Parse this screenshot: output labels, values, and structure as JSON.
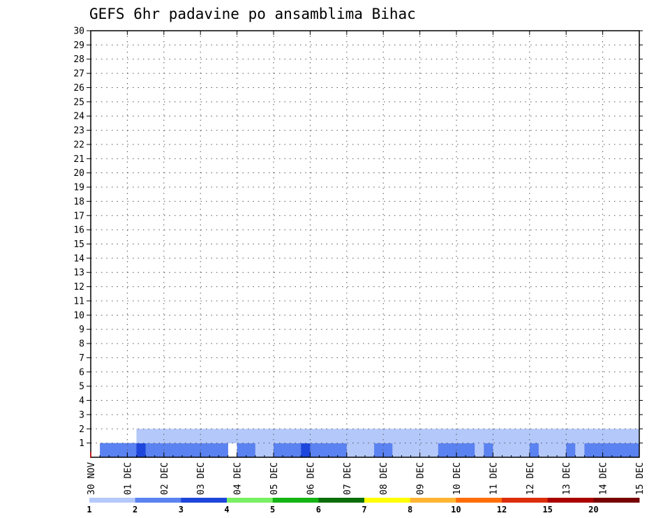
{
  "chart_data": {
    "type": "heatmap",
    "title": "GEFS 6hr padavine po ansamblima Bihac",
    "xlabel": "",
    "ylabel": "",
    "x_ticks": [
      "30 NOV",
      "01 DEC",
      "02 DEC",
      "03 DEC",
      "04 DEC",
      "05 DEC",
      "06 DEC",
      "07 DEC",
      "08 DEC",
      "09 DEC",
      "10 DEC",
      "11 DEC",
      "12 DEC",
      "13 DEC",
      "14 DEC",
      "15 DEC"
    ],
    "y_ticks": [
      1,
      2,
      3,
      4,
      5,
      6,
      7,
      8,
      9,
      10,
      11,
      12,
      13,
      14,
      15,
      16,
      17,
      18,
      19,
      20,
      21,
      22,
      23,
      24,
      25,
      26,
      27,
      28,
      29,
      30
    ],
    "x_range_days": [
      0,
      15
    ],
    "time_step_hours": 6,
    "y_range": [
      0,
      30
    ],
    "grid": true,
    "legend_placement": "bottom",
    "legend_bins": [
      1,
      2,
      3,
      4,
      5,
      6,
      7,
      8,
      10,
      12,
      15,
      20
    ],
    "legend_colors": [
      "#b4c8fa",
      "#5a82f0",
      "#1e46dc",
      "#78f064",
      "#14b414",
      "#0a6e0a",
      "#ffff00",
      "#ffb432",
      "#ff6e0a",
      "#dc2d0a",
      "#aa0000",
      "#780000"
    ],
    "cells": [
      [
        0.25,
        0,
        2
      ],
      [
        0.5,
        0,
        2
      ],
      [
        0.75,
        0,
        2
      ],
      [
        1,
        0,
        2
      ],
      [
        1.25,
        0,
        3
      ],
      [
        1.5,
        0,
        2
      ],
      [
        1.75,
        0,
        2
      ],
      [
        2,
        0,
        2
      ],
      [
        2.25,
        0,
        2
      ],
      [
        2.5,
        0,
        2
      ],
      [
        2.75,
        0,
        2
      ],
      [
        3,
        0,
        2
      ],
      [
        3.25,
        0,
        2
      ],
      [
        3.5,
        0,
        2
      ],
      [
        4,
        0,
        2
      ],
      [
        4.25,
        0,
        2
      ],
      [
        4.5,
        0,
        1
      ],
      [
        4.75,
        0,
        1
      ],
      [
        5,
        0,
        2
      ],
      [
        5.25,
        0,
        2
      ],
      [
        5.5,
        0,
        2
      ],
      [
        5.75,
        0,
        3
      ],
      [
        6,
        0,
        2
      ],
      [
        6.25,
        0,
        2
      ],
      [
        6.5,
        0,
        2
      ],
      [
        6.75,
        0,
        2
      ],
      [
        7,
        0,
        1
      ],
      [
        7.25,
        0,
        1
      ],
      [
        7.5,
        0,
        1
      ],
      [
        7.75,
        0,
        2
      ],
      [
        8,
        0,
        2
      ],
      [
        8.25,
        0,
        1
      ],
      [
        8.5,
        0,
        1
      ],
      [
        8.75,
        0,
        1
      ],
      [
        9,
        0,
        1
      ],
      [
        9.25,
        0,
        1
      ],
      [
        9.5,
        0,
        2
      ],
      [
        9.75,
        0,
        2
      ],
      [
        10,
        0,
        2
      ],
      [
        10.25,
        0,
        2
      ],
      [
        10.5,
        0,
        1
      ],
      [
        10.75,
        0,
        2
      ],
      [
        11,
        0,
        1
      ],
      [
        11.25,
        0,
        1
      ],
      [
        11.5,
        0,
        1
      ],
      [
        11.75,
        0,
        1
      ],
      [
        12,
        0,
        2
      ],
      [
        12.25,
        0,
        1
      ],
      [
        12.5,
        0,
        1
      ],
      [
        12.75,
        0,
        1
      ],
      [
        13,
        0,
        2
      ],
      [
        13.25,
        0,
        1
      ],
      [
        13.5,
        0,
        2
      ],
      [
        13.75,
        0,
        2
      ],
      [
        14,
        0,
        2
      ],
      [
        14.25,
        0,
        2
      ],
      [
        14.5,
        0,
        2
      ],
      [
        14.75,
        0,
        2
      ],
      [
        1.25,
        1,
        1
      ],
      [
        1.5,
        1,
        1
      ],
      [
        1.75,
        1,
        1
      ],
      [
        2,
        1,
        1
      ],
      [
        2.25,
        1,
        1
      ],
      [
        2.5,
        1,
        1
      ],
      [
        2.75,
        1,
        1
      ],
      [
        3,
        1,
        1
      ],
      [
        3.25,
        1,
        1
      ],
      [
        3.5,
        1,
        1
      ],
      [
        3.75,
        1,
        1
      ],
      [
        4,
        1,
        1
      ],
      [
        4.25,
        1,
        1
      ],
      [
        4.5,
        1,
        1
      ],
      [
        4.75,
        1,
        1
      ],
      [
        5,
        1,
        1
      ],
      [
        5.25,
        1,
        1
      ],
      [
        5.5,
        1,
        1
      ],
      [
        5.75,
        1,
        1
      ],
      [
        6,
        1,
        1
      ],
      [
        6.25,
        1,
        1
      ],
      [
        6.5,
        1,
        1
      ],
      [
        6.75,
        1,
        1
      ],
      [
        7,
        1,
        1
      ],
      [
        7.25,
        1,
        1
      ],
      [
        7.5,
        1,
        1
      ],
      [
        7.75,
        1,
        1
      ],
      [
        8,
        1,
        1
      ],
      [
        8.25,
        1,
        1
      ],
      [
        8.5,
        1,
        1
      ],
      [
        8.75,
        1,
        1
      ],
      [
        9,
        1,
        1
      ],
      [
        9.25,
        1,
        1
      ],
      [
        9.5,
        1,
        1
      ],
      [
        9.75,
        1,
        1
      ],
      [
        10,
        1,
        1
      ],
      [
        10.25,
        1,
        1
      ],
      [
        10.5,
        1,
        1
      ],
      [
        10.75,
        1,
        1
      ],
      [
        11,
        1,
        1
      ],
      [
        11.25,
        1,
        1
      ],
      [
        11.5,
        1,
        1
      ],
      [
        11.75,
        1,
        1
      ],
      [
        12,
        1,
        1
      ],
      [
        12.25,
        1,
        1
      ],
      [
        12.5,
        1,
        1
      ],
      [
        12.75,
        1,
        1
      ],
      [
        13,
        1,
        1
      ],
      [
        13.25,
        1,
        1
      ],
      [
        13.5,
        1,
        1
      ],
      [
        13.75,
        1,
        1
      ],
      [
        14,
        1,
        1
      ],
      [
        14.25,
        1,
        1
      ],
      [
        14.5,
        1,
        1
      ],
      [
        14.75,
        1,
        1
      ]
    ]
  }
}
